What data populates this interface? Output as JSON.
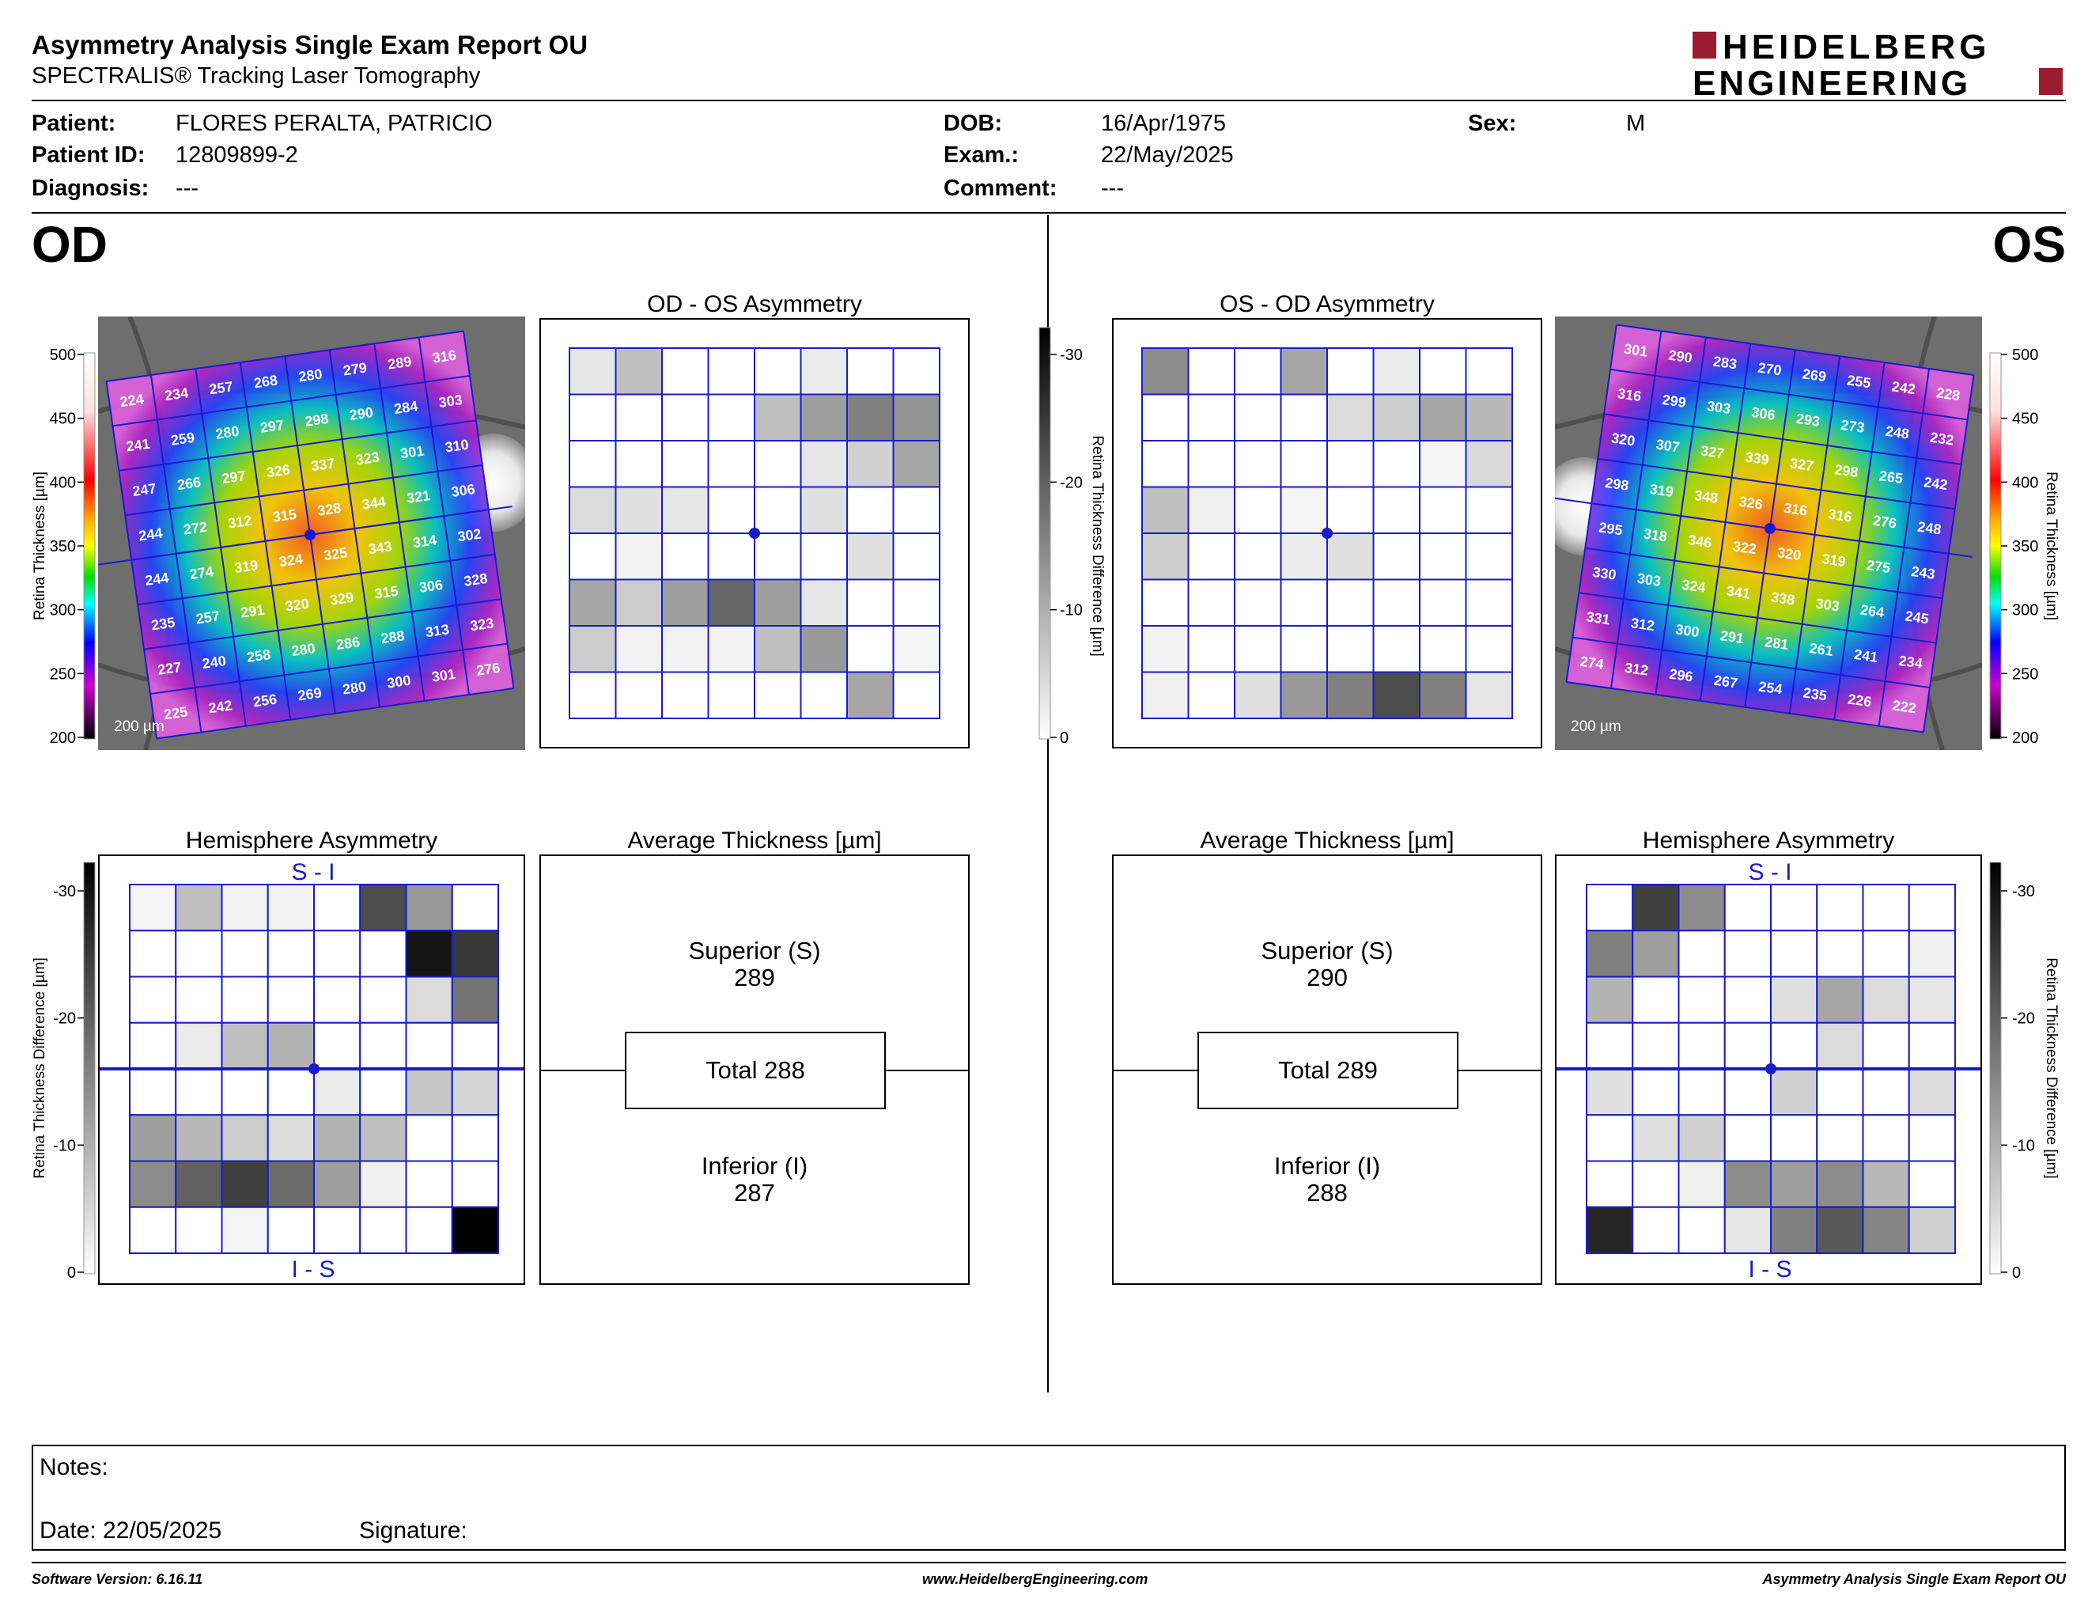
{
  "header": {
    "title": "Asymmetry Analysis Single Exam Report OU",
    "subtitle": "SPECTRALIS® Tracking Laser Tomography",
    "logo_line1": "HEIDELBERG",
    "logo_line2": "ENGINEERING"
  },
  "patient": {
    "patient_label": "Patient:",
    "patient_value": "FLORES PERALTA, PATRICIO",
    "id_label": "Patient ID:",
    "id_value": "12809899-2",
    "diagnosis_label": "Diagnosis:",
    "diagnosis_value": "---",
    "dob_label": "DOB:",
    "dob_value": "16/Apr/1975",
    "exam_label": "Exam.:",
    "exam_value": "22/May/2025",
    "comment_label": "Comment:",
    "comment_value": "---",
    "sex_label": "Sex:",
    "sex_value": "M"
  },
  "eyes": {
    "od": "OD",
    "os": "OS"
  },
  "panels": {
    "od_os_asym": "OD - OS Asymmetry",
    "os_od_asym": "OS - OD Asymmetry",
    "hemi": "Hemisphere Asymmetry",
    "avg": "Average Thickness [µm]",
    "s_i": "S - I",
    "i_s": "I - S",
    "scale_bar": "200 µm"
  },
  "scales": {
    "thickness_label": "Retina  Thickness [µm]",
    "thickness_ticks": [
      "500",
      "450",
      "400",
      "350",
      "300",
      "250",
      "200"
    ],
    "diff_label": "Retina Thickness Difference [µm]",
    "diff_ticks": [
      "-30",
      "-20",
      "-10",
      "0"
    ]
  },
  "average": {
    "od": {
      "superior_label": "Superior (S)",
      "superior": "289",
      "total": "Total 288",
      "inferior_label": "Inferior (I)",
      "inferior": "287"
    },
    "os": {
      "superior_label": "Superior (S)",
      "superior": "290",
      "total": "Total 289",
      "inferior_label": "Inferior (I)",
      "inferior": "288"
    }
  },
  "thickness_grid": {
    "od": [
      [
        224,
        234,
        257,
        268,
        280,
        279,
        289,
        316
      ],
      [
        241,
        259,
        280,
        297,
        298,
        290,
        284,
        303
      ],
      [
        247,
        266,
        297,
        326,
        337,
        323,
        301,
        310
      ],
      [
        244,
        272,
        312,
        315,
        328,
        344,
        321,
        306
      ],
      [
        244,
        274,
        319,
        324,
        325,
        343,
        314,
        302
      ],
      [
        235,
        257,
        291,
        320,
        329,
        315,
        306,
        328
      ],
      [
        227,
        240,
        258,
        280,
        286,
        288,
        313,
        323
      ],
      [
        225,
        242,
        256,
        269,
        280,
        300,
        301,
        276
      ]
    ],
    "os": [
      [
        301,
        290,
        283,
        270,
        269,
        255,
        242,
        228
      ],
      [
        316,
        299,
        303,
        306,
        293,
        273,
        248,
        232
      ],
      [
        320,
        307,
        327,
        339,
        327,
        298,
        265,
        242
      ],
      [
        298,
        319,
        348,
        326,
        316,
        316,
        276,
        248
      ],
      [
        295,
        318,
        346,
        322,
        320,
        319,
        275,
        243
      ],
      [
        330,
        303,
        324,
        341,
        338,
        303,
        264,
        245
      ],
      [
        331,
        312,
        300,
        291,
        281,
        261,
        241,
        234
      ],
      [
        274,
        312,
        296,
        267,
        254,
        235,
        226,
        222
      ]
    ]
  },
  "asym_grid": {
    "od_os": [
      [
        0.1,
        0.25,
        0,
        0,
        0,
        0.08,
        0,
        0
      ],
      [
        0,
        0,
        0,
        0,
        0.25,
        0.38,
        0.5,
        0.42
      ],
      [
        0,
        0,
        0,
        0,
        0,
        0.1,
        0.18,
        0.35
      ],
      [
        0.14,
        0.12,
        0.1,
        0,
        0,
        0.12,
        0,
        0
      ],
      [
        0,
        0.05,
        0,
        0,
        0,
        0,
        0.12,
        0
      ],
      [
        0.35,
        0.2,
        0.38,
        0.6,
        0.38,
        0.1,
        0,
        0
      ],
      [
        0.2,
        0.05,
        0.05,
        0.05,
        0.25,
        0.4,
        0,
        0.04
      ],
      [
        0,
        0,
        0,
        0,
        0,
        0,
        0.35,
        0
      ]
    ],
    "os_od": [
      [
        0.45,
        0,
        0,
        0.35,
        0,
        0.08,
        0,
        0
      ],
      [
        0,
        0,
        0,
        0,
        0.14,
        0.2,
        0.35,
        0.28
      ],
      [
        0,
        0,
        0,
        0,
        0,
        0,
        0.04,
        0.15
      ],
      [
        0.25,
        0.06,
        0,
        0.04,
        0,
        0,
        0,
        0
      ],
      [
        0.2,
        0,
        0,
        0.08,
        0.12,
        0,
        0,
        0
      ],
      [
        0,
        0,
        0,
        0,
        0,
        0,
        0,
        0
      ],
      [
        0.05,
        0,
        0,
        0,
        0,
        0,
        0,
        0
      ],
      [
        0.06,
        0,
        0.12,
        0.4,
        0.5,
        0.7,
        0.5,
        0.1
      ]
    ]
  },
  "hemi_grid": {
    "od": [
      [
        0.04,
        0.25,
        0.05,
        0.05,
        0,
        0.7,
        0.4,
        0
      ],
      [
        0,
        0,
        0,
        0,
        0,
        0,
        0.92,
        0.78
      ],
      [
        0,
        0,
        0,
        0,
        0,
        0,
        0.14,
        0.55
      ],
      [
        0,
        0.08,
        0.25,
        0.3,
        0,
        0,
        0,
        0
      ],
      [
        0,
        0,
        0,
        0,
        0.08,
        0,
        0.22,
        0.16
      ],
      [
        0.38,
        0.28,
        0.2,
        0.14,
        0.3,
        0.25,
        0,
        0
      ],
      [
        0.45,
        0.62,
        0.75,
        0.58,
        0.38,
        0.06,
        0,
        0
      ],
      [
        0,
        0,
        0.04,
        0,
        0,
        0,
        0,
        1.0
      ]
    ],
    "os": [
      [
        0,
        0.75,
        0.45,
        0,
        0,
        0,
        0,
        0
      ],
      [
        0.5,
        0.38,
        0,
        0,
        0,
        0,
        0,
        0.06
      ],
      [
        0.3,
        0,
        0,
        0,
        0.12,
        0.35,
        0.14,
        0.1
      ],
      [
        0,
        0,
        0,
        0,
        0,
        0.14,
        0,
        0
      ],
      [
        0.12,
        0,
        0,
        0,
        0.18,
        0,
        0,
        0.14
      ],
      [
        0,
        0.12,
        0.18,
        0,
        0,
        0,
        0,
        0
      ],
      [
        0,
        0,
        0.06,
        0.45,
        0.38,
        0.45,
        0.28,
        0
      ],
      [
        0.85,
        0,
        0,
        0.1,
        0.5,
        0.65,
        0.48,
        0.18
      ]
    ]
  },
  "notes": {
    "notes_label": "Notes:",
    "date_label": "Date: 22/05/2025",
    "signature_label": "Signature:"
  },
  "footer": {
    "software": "Software Version: 6.16.11",
    "website": "www.HeidelbergEngineering.com",
    "report": "Asymmetry Analysis Single Exam Report OU"
  },
  "colors": {
    "grid_blue": "#1a1acc",
    "logo_red": "#9b1b30"
  }
}
